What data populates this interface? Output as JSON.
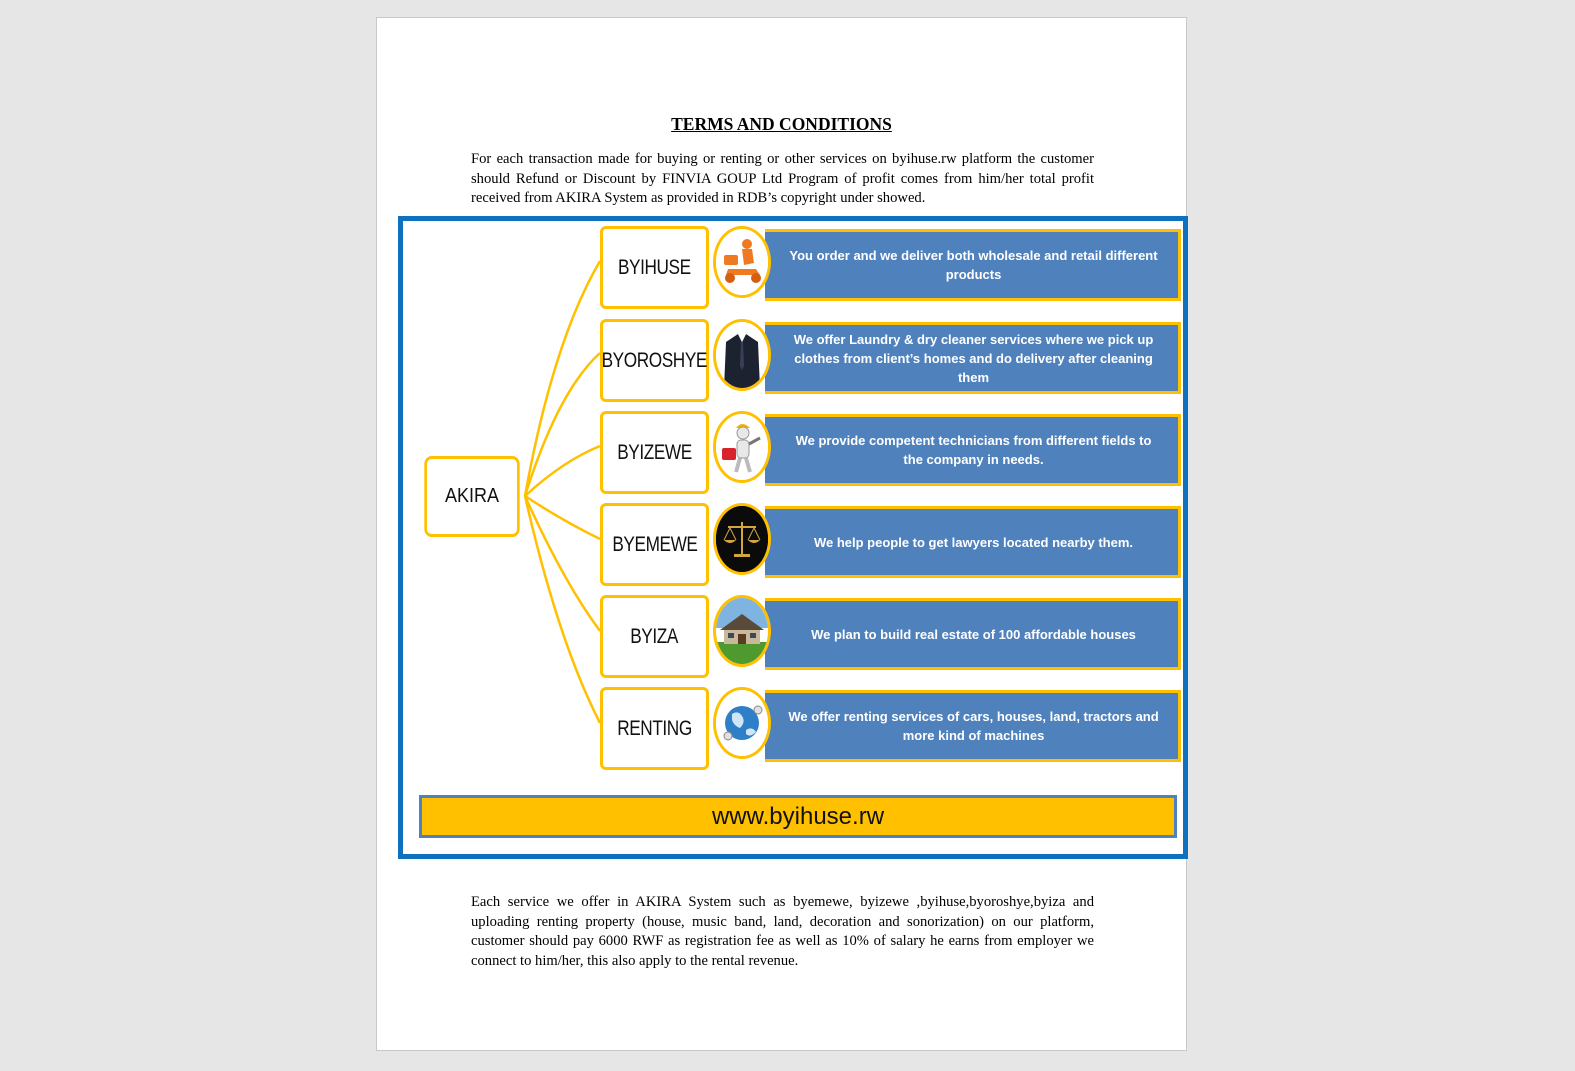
{
  "document": {
    "title": "TERMS AND CONDITIONS",
    "paragraph1": "For each transaction made for buying or renting or other services on byihuse.rw platform the customer should Refund or Discount by FINVIA GOUP Ltd Program of profit comes from him/her total profit received from AKIRA System as provided   in RDB’s copyright under showed.",
    "paragraph2": "Each service we offer  in AKIRA System such as byemewe,  byizewe ,byihuse,byoroshye,byiza and uploading renting property (house, music band, land, decoration and sonorization) on our platform, customer should pay 6000 RWF as registration fee as well as 10% of salary he earns from employer we connect to him/her, this also apply to the rental revenue."
  },
  "diagram": {
    "root": "AKIRA",
    "website": "www.byihuse.rw",
    "colors": {
      "frame": "#0e71c0",
      "accent": "#ffc000",
      "panel": "#4f81bd"
    },
    "services": [
      {
        "name": "BYIHUSE",
        "icon": "delivery-scooter-icon",
        "description": "You order and we deliver both wholesale and retail different products"
      },
      {
        "name": "BYOROSHYE",
        "icon": "suit-icon",
        "description": "We offer Laundry & dry cleaner services where we pick up clothes from client’s homes and do delivery after cleaning them"
      },
      {
        "name": "BYIZEWE",
        "icon": "technician-icon",
        "description": "We provide competent technicians from different fields to the company in needs."
      },
      {
        "name": "BYEMEWE",
        "icon": "scales-of-justice-icon",
        "description": "We help people to get lawyers located nearby them."
      },
      {
        "name": "BYIZA",
        "icon": "house-icon",
        "description": "We plan to build real estate of 100 affordable houses"
      },
      {
        "name": "RENTING",
        "icon": "globe-rental-icon",
        "description": "We offer renting services of cars,  houses, land, tractors and more kind of machines"
      }
    ]
  }
}
